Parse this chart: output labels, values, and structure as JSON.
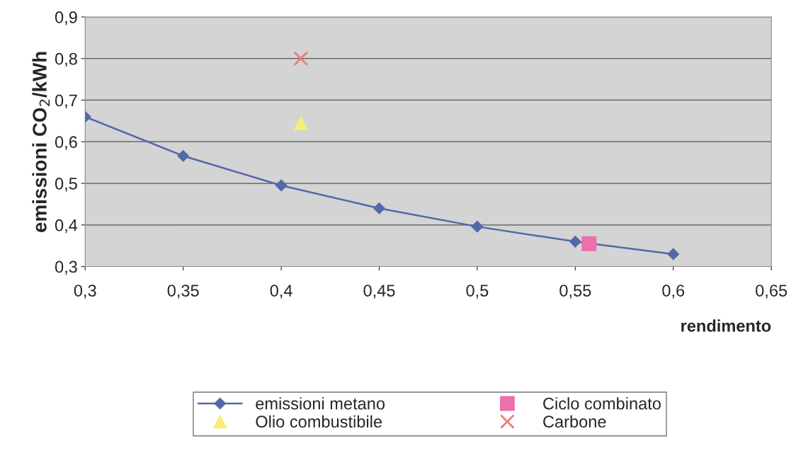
{
  "chart_data": {
    "type": "line",
    "xlabel": "rendimento",
    "ylabel": "emissioni CO$_{2}$/kWh",
    "series": [
      {
        "name": "emissioni metano",
        "marker": "diamond",
        "color": "#5468a8",
        "x": [
          0.3,
          0.35,
          0.4,
          0.45,
          0.5,
          0.55,
          0.6
        ],
        "values": [
          0.66,
          0.566,
          0.495,
          0.44,
          0.396,
          0.36,
          0.33
        ]
      },
      {
        "name": "Olio combustibile",
        "type": "scatter",
        "marker": "triangle",
        "color": "#f8ee78",
        "x": [
          0.41
        ],
        "values": [
          0.645
        ]
      },
      {
        "name": "Ciclo combinato",
        "type": "scatter",
        "marker": "square",
        "color": "#ec6fae",
        "x": [
          0.557
        ],
        "values": [
          0.355
        ]
      },
      {
        "name": "Carbone",
        "type": "scatter",
        "marker": "cross",
        "color": "#ec7c78",
        "x": [
          0.41
        ],
        "values": [
          0.8
        ]
      }
    ],
    "xlim": [
      0.3,
      0.65
    ],
    "xticks": [
      {
        "value": 0.3,
        "label": "0,3"
      },
      {
        "value": 0.35,
        "label": "0,35"
      },
      {
        "value": 0.4,
        "label": "0,4"
      },
      {
        "value": 0.45,
        "label": "0,45"
      },
      {
        "value": 0.5,
        "label": "0,5"
      },
      {
        "value": 0.55,
        "label": "0,55"
      },
      {
        "value": 0.6,
        "label": "0,6"
      },
      {
        "value": 0.65,
        "label": "0,65"
      }
    ],
    "ylim": [
      0.3,
      0.9
    ],
    "yticks": [
      {
        "value": 0.3,
        "label": "0,3"
      },
      {
        "value": 0.4,
        "label": "0,4"
      },
      {
        "value": 0.5,
        "label": "0,5"
      },
      {
        "value": 0.6,
        "label": "0,6"
      },
      {
        "value": 0.7,
        "label": "0,7"
      },
      {
        "value": 0.8,
        "label": "0,8"
      },
      {
        "value": 0.9,
        "label": "0,9"
      }
    ],
    "grid": "y",
    "legend": "bottom"
  }
}
